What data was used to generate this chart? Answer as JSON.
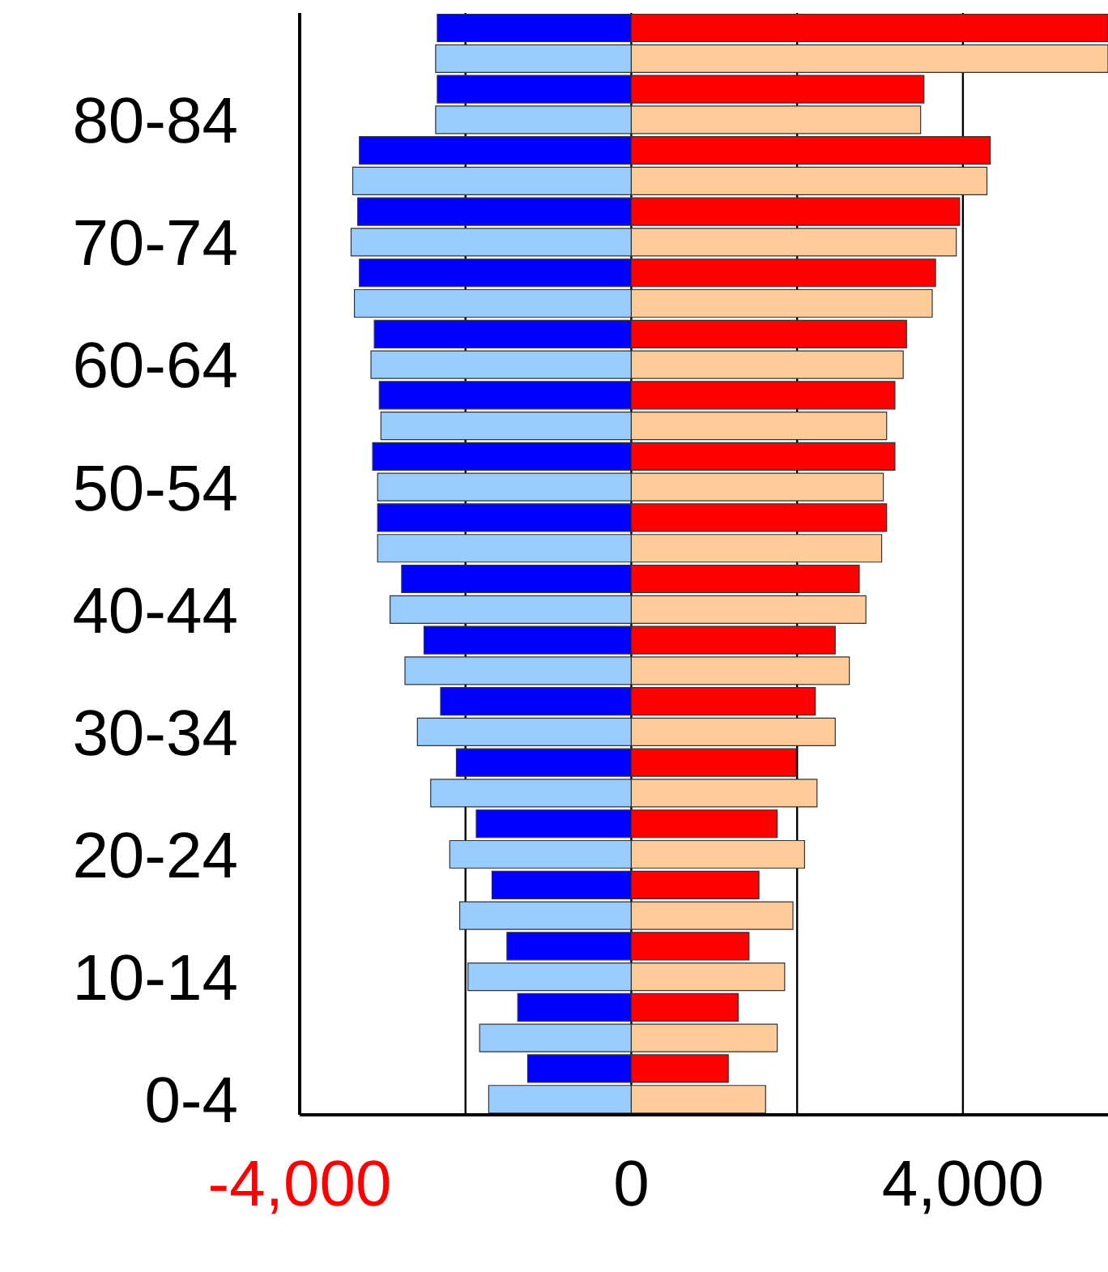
{
  "chart_data": {
    "type": "bar",
    "orientation": "horizontal",
    "stacked": true,
    "grid": "x",
    "legend": false,
    "categories": [
      null,
      null,
      null,
      "80-84",
      null,
      null,
      null,
      "70-74",
      null,
      null,
      null,
      "60-64",
      null,
      null,
      null,
      "50-54",
      null,
      null,
      null,
      "40-44",
      null,
      null,
      null,
      "30-34",
      null,
      null,
      null,
      "20-24",
      null,
      null,
      null,
      "10-14",
      null,
      null,
      null,
      "0-4"
    ],
    "xlim": [
      -4000,
      5750
    ],
    "xticks": [
      {
        "value": -4000,
        "label": "-4,000"
      },
      {
        "value": -2000,
        "label": null
      },
      0,
      {
        "value": 2000,
        "label": null
      },
      {
        "value": 4000,
        "label": "4,000"
      }
    ],
    "series": [
      {
        "colors": [
          "#0000ff",
          "#99ccff",
          "#0000ff",
          "#99ccff",
          "#0000ff",
          "#99ccff",
          "#0000ff",
          "#99ccff",
          "#0000ff",
          "#99ccff",
          "#0000ff",
          "#99ccff",
          "#0000ff",
          "#99ccff",
          "#0000ff",
          "#99ccff",
          "#0000ff",
          "#99ccff",
          "#0000ff",
          "#99ccff",
          "#0000ff",
          "#99ccff",
          "#0000ff",
          "#99ccff",
          "#0000ff",
          "#99ccff",
          "#0000ff",
          "#99ccff",
          "#0000ff",
          "#99ccff",
          "#0000ff",
          "#99ccff",
          "#0000ff",
          "#99ccff",
          "#0000ff",
          "#99ccff"
        ],
        "values": [
          -2340,
          -2360,
          -2340,
          -2360,
          -3280,
          -3360,
          -3300,
          -3380,
          -3280,
          -3340,
          -3100,
          -3140,
          -3040,
          -3020,
          -3120,
          -3060,
          -3060,
          -3060,
          -2770,
          -2910,
          -2500,
          -2730,
          -2300,
          -2580,
          -2110,
          -2420,
          -1870,
          -2190,
          -1680,
          -2070,
          -1500,
          -1970,
          -1370,
          -1830,
          -1250,
          -1720
        ]
      },
      {
        "colors": [
          "#ff0000",
          "#ffcc99",
          "#ff0000",
          "#ffcc99",
          "#ff0000",
          "#ffcc99",
          "#ff0000",
          "#ffcc99",
          "#ff0000",
          "#ffcc99",
          "#ff0000",
          "#ffcc99",
          "#ff0000",
          "#ffcc99",
          "#ff0000",
          "#ffcc99",
          "#ff0000",
          "#ffcc99",
          "#ff0000",
          "#ffcc99",
          "#ff0000",
          "#ffcc99",
          "#ff0000",
          "#ffcc99",
          "#ff0000",
          "#ffcc99",
          "#ff0000",
          "#ffcc99",
          "#ff0000",
          "#ffcc99",
          "#ff0000",
          "#ffcc99",
          "#ff0000",
          "#ffcc99",
          "#ff0000",
          "#ffcc99"
        ],
        "values": [
          5750,
          5750,
          3530,
          3490,
          4330,
          4290,
          3960,
          3920,
          3670,
          3630,
          3320,
          3280,
          3180,
          3080,
          3180,
          3040,
          3080,
          3020,
          2750,
          2830,
          2460,
          2630,
          2220,
          2460,
          1990,
          2240,
          1760,
          2090,
          1540,
          1950,
          1420,
          1850,
          1290,
          1760,
          1170,
          1620
        ]
      }
    ]
  }
}
